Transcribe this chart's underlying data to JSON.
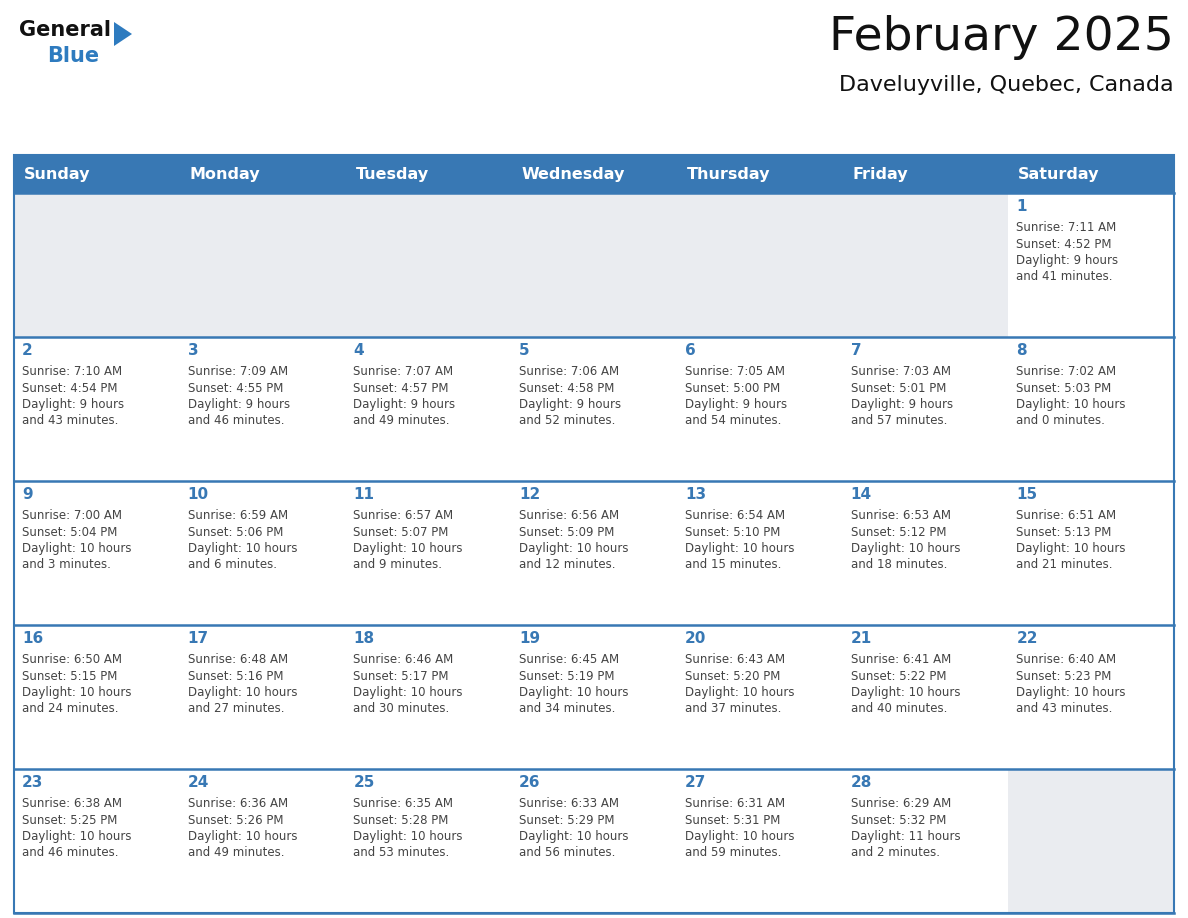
{
  "title": "February 2025",
  "subtitle": "Daveluyville, Quebec, Canada",
  "header_bg_color": "#3878b4",
  "header_text_color": "#ffffff",
  "empty_cell_bg": "#eaecf0",
  "filled_cell_bg": "#ffffff",
  "row_border_color": "#3878b4",
  "day_number_color": "#3878b4",
  "info_color": "#444444",
  "title_color": "#111111",
  "subtitle_color": "#111111",
  "logo_black": "#111111",
  "logo_blue": "#2e7bbf",
  "day_names": [
    "Sunday",
    "Monday",
    "Tuesday",
    "Wednesday",
    "Thursday",
    "Friday",
    "Saturday"
  ],
  "calendar_data": [
    [
      null,
      null,
      null,
      null,
      null,
      null,
      {
        "day": "1",
        "sunrise": "7:11 AM",
        "sunset": "4:52 PM",
        "daylight": "9 hours and 41 minutes."
      }
    ],
    [
      {
        "day": "2",
        "sunrise": "7:10 AM",
        "sunset": "4:54 PM",
        "daylight": "9 hours and 43 minutes."
      },
      {
        "day": "3",
        "sunrise": "7:09 AM",
        "sunset": "4:55 PM",
        "daylight": "9 hours and 46 minutes."
      },
      {
        "day": "4",
        "sunrise": "7:07 AM",
        "sunset": "4:57 PM",
        "daylight": "9 hours and 49 minutes."
      },
      {
        "day": "5",
        "sunrise": "7:06 AM",
        "sunset": "4:58 PM",
        "daylight": "9 hours and 52 minutes."
      },
      {
        "day": "6",
        "sunrise": "7:05 AM",
        "sunset": "5:00 PM",
        "daylight": "9 hours and 54 minutes."
      },
      {
        "day": "7",
        "sunrise": "7:03 AM",
        "sunset": "5:01 PM",
        "daylight": "9 hours and 57 minutes."
      },
      {
        "day": "8",
        "sunrise": "7:02 AM",
        "sunset": "5:03 PM",
        "daylight": "10 hours and 0 minutes."
      }
    ],
    [
      {
        "day": "9",
        "sunrise": "7:00 AM",
        "sunset": "5:04 PM",
        "daylight": "10 hours and 3 minutes."
      },
      {
        "day": "10",
        "sunrise": "6:59 AM",
        "sunset": "5:06 PM",
        "daylight": "10 hours and 6 minutes."
      },
      {
        "day": "11",
        "sunrise": "6:57 AM",
        "sunset": "5:07 PM",
        "daylight": "10 hours and 9 minutes."
      },
      {
        "day": "12",
        "sunrise": "6:56 AM",
        "sunset": "5:09 PM",
        "daylight": "10 hours and 12 minutes."
      },
      {
        "day": "13",
        "sunrise": "6:54 AM",
        "sunset": "5:10 PM",
        "daylight": "10 hours and 15 minutes."
      },
      {
        "day": "14",
        "sunrise": "6:53 AM",
        "sunset": "5:12 PM",
        "daylight": "10 hours and 18 minutes."
      },
      {
        "day": "15",
        "sunrise": "6:51 AM",
        "sunset": "5:13 PM",
        "daylight": "10 hours and 21 minutes."
      }
    ],
    [
      {
        "day": "16",
        "sunrise": "6:50 AM",
        "sunset": "5:15 PM",
        "daylight": "10 hours and 24 minutes."
      },
      {
        "day": "17",
        "sunrise": "6:48 AM",
        "sunset": "5:16 PM",
        "daylight": "10 hours and 27 minutes."
      },
      {
        "day": "18",
        "sunrise": "6:46 AM",
        "sunset": "5:17 PM",
        "daylight": "10 hours and 30 minutes."
      },
      {
        "day": "19",
        "sunrise": "6:45 AM",
        "sunset": "5:19 PM",
        "daylight": "10 hours and 34 minutes."
      },
      {
        "day": "20",
        "sunrise": "6:43 AM",
        "sunset": "5:20 PM",
        "daylight": "10 hours and 37 minutes."
      },
      {
        "day": "21",
        "sunrise": "6:41 AM",
        "sunset": "5:22 PM",
        "daylight": "10 hours and 40 minutes."
      },
      {
        "day": "22",
        "sunrise": "6:40 AM",
        "sunset": "5:23 PM",
        "daylight": "10 hours and 43 minutes."
      }
    ],
    [
      {
        "day": "23",
        "sunrise": "6:38 AM",
        "sunset": "5:25 PM",
        "daylight": "10 hours and 46 minutes."
      },
      {
        "day": "24",
        "sunrise": "6:36 AM",
        "sunset": "5:26 PM",
        "daylight": "10 hours and 49 minutes."
      },
      {
        "day": "25",
        "sunrise": "6:35 AM",
        "sunset": "5:28 PM",
        "daylight": "10 hours and 53 minutes."
      },
      {
        "day": "26",
        "sunrise": "6:33 AM",
        "sunset": "5:29 PM",
        "daylight": "10 hours and 56 minutes."
      },
      {
        "day": "27",
        "sunrise": "6:31 AM",
        "sunset": "5:31 PM",
        "daylight": "10 hours and 59 minutes."
      },
      {
        "day": "28",
        "sunrise": "6:29 AM",
        "sunset": "5:32 PM",
        "daylight": "11 hours and 2 minutes."
      },
      null
    ]
  ]
}
